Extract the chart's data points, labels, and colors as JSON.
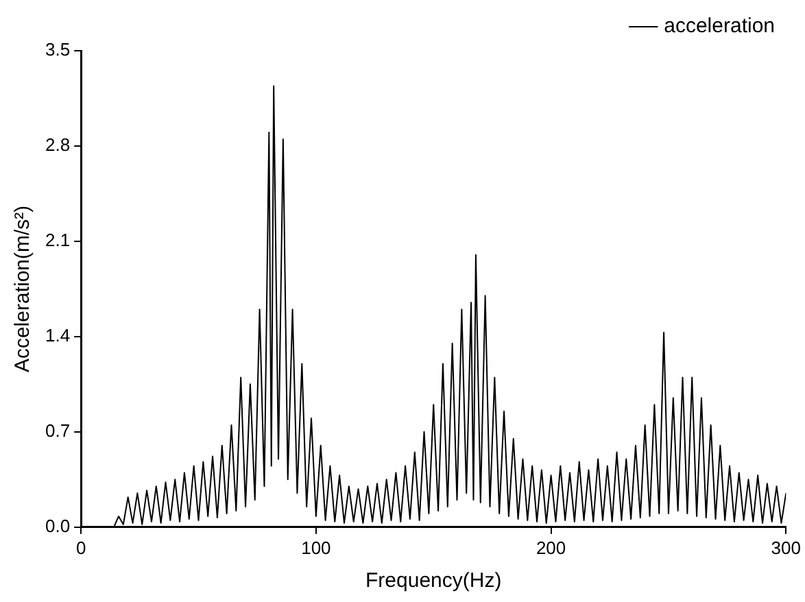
{
  "chart_data": {
    "type": "line",
    "xlabel": "Frequency(Hz)",
    "ylabel": "Acceleration(m/s²)",
    "xlim": [
      0,
      300
    ],
    "ylim": [
      0,
      3.5
    ],
    "xticks": [
      0,
      100,
      200,
      300
    ],
    "yticks": [
      {
        "value": 0,
        "label": "0.0"
      },
      0.7,
      1.4,
      2.1,
      2.8,
      3.5
    ],
    "grid": false,
    "legend": "top right",
    "marker": "none",
    "line_style": "solid",
    "series": [
      {
        "name": "acceleration",
        "color": "#000000",
        "x": [
          14,
          16,
          18,
          20,
          22,
          24,
          26,
          28,
          30,
          32,
          34,
          36,
          38,
          40,
          42,
          44,
          46,
          48,
          50,
          52,
          54,
          56,
          58,
          60,
          62,
          64,
          66,
          68,
          70,
          72,
          74,
          76,
          78,
          80,
          81,
          82,
          84,
          86,
          88,
          90,
          92,
          94,
          96,
          98,
          100,
          102,
          104,
          106,
          108,
          110,
          112,
          114,
          116,
          118,
          120,
          122,
          124,
          126,
          128,
          130,
          132,
          134,
          136,
          138,
          140,
          142,
          144,
          146,
          148,
          150,
          152,
          154,
          156,
          158,
          160,
          162,
          164,
          166,
          167,
          168,
          170,
          172,
          174,
          176,
          178,
          180,
          182,
          184,
          186,
          188,
          190,
          192,
          194,
          196,
          198,
          200,
          202,
          204,
          206,
          208,
          210,
          212,
          214,
          216,
          218,
          220,
          222,
          224,
          226,
          228,
          230,
          232,
          234,
          236,
          238,
          240,
          242,
          244,
          246,
          248,
          250,
          252,
          254,
          256,
          258,
          260,
          262,
          264,
          266,
          268,
          270,
          272,
          274,
          276,
          278,
          280,
          282,
          284,
          286,
          288,
          290,
          292,
          294,
          296,
          298,
          300
        ],
        "values": [
          0,
          0.08,
          0.02,
          0.22,
          0.03,
          0.25,
          0.02,
          0.27,
          0.04,
          0.3,
          0.03,
          0.33,
          0.05,
          0.35,
          0.04,
          0.4,
          0.06,
          0.45,
          0.05,
          0.48,
          0.08,
          0.52,
          0.07,
          0.6,
          0.1,
          0.75,
          0.12,
          1.1,
          0.15,
          1.05,
          0.2,
          1.6,
          0.3,
          2.9,
          0.45,
          3.24,
          0.5,
          2.85,
          0.35,
          1.6,
          0.25,
          1.2,
          0.15,
          0.8,
          0.08,
          0.6,
          0.05,
          0.45,
          0.04,
          0.38,
          0.03,
          0.3,
          0.04,
          0.28,
          0.03,
          0.3,
          0.04,
          0.32,
          0.03,
          0.35,
          0.05,
          0.4,
          0.04,
          0.45,
          0.06,
          0.55,
          0.05,
          0.7,
          0.1,
          0.9,
          0.12,
          1.2,
          0.15,
          1.35,
          0.2,
          1.6,
          0.25,
          1.65,
          0.2,
          2.0,
          0.18,
          1.7,
          0.15,
          1.1,
          0.1,
          0.85,
          0.08,
          0.65,
          0.06,
          0.5,
          0.05,
          0.45,
          0.04,
          0.42,
          0.03,
          0.38,
          0.04,
          0.45,
          0.05,
          0.4,
          0.04,
          0.48,
          0.05,
          0.42,
          0.04,
          0.5,
          0.05,
          0.45,
          0.04,
          0.55,
          0.05,
          0.5,
          0.06,
          0.6,
          0.07,
          0.75,
          0.08,
          0.9,
          0.1,
          1.43,
          0.1,
          0.95,
          0.12,
          1.1,
          0.1,
          1.1,
          0.08,
          0.95,
          0.07,
          0.75,
          0.06,
          0.6,
          0.05,
          0.45,
          0.04,
          0.4,
          0.05,
          0.35,
          0.04,
          0.38,
          0.03,
          0.32,
          0.04,
          0.3,
          0.03,
          0.25
        ]
      }
    ]
  }
}
